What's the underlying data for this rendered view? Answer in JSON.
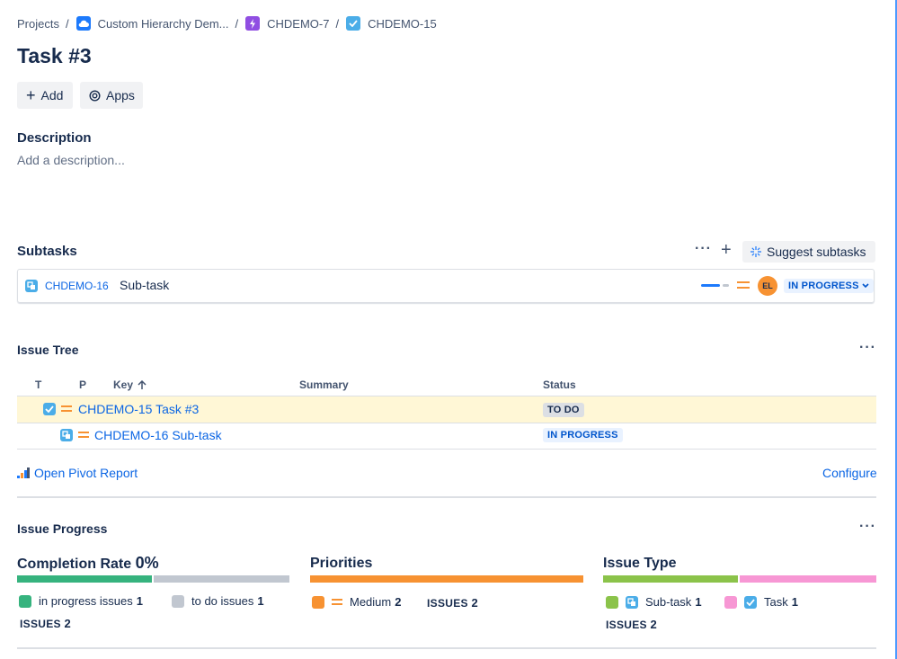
{
  "breadcrumb": {
    "projects": "Projects",
    "project": "Custom Hierarchy Dem...",
    "epic": "CHDEMO-7",
    "task": "CHDEMO-15",
    "separator": "/"
  },
  "issue": {
    "title": "Task #3"
  },
  "actions": {
    "add_label": "Add",
    "apps_label": "Apps"
  },
  "description": {
    "heading": "Description",
    "placeholder": "Add a description..."
  },
  "subtasks": {
    "heading": "Subtasks",
    "suggest_label": "Suggest subtasks",
    "items": [
      {
        "key": "CHDEMO-16",
        "summary": "Sub-task",
        "assignee_initials": "EL",
        "status": "IN PROGRESS"
      }
    ]
  },
  "issue_tree": {
    "heading": "Issue Tree",
    "columns": {
      "t": "T",
      "p": "P",
      "key": "Key",
      "summary": "Summary",
      "status": "Status"
    },
    "rows": [
      {
        "key_summary": "CHDEMO-15 Task #3",
        "status": "TO DO"
      },
      {
        "key_summary": "CHDEMO-16 Sub-task",
        "status": "IN PROGRESS"
      }
    ],
    "pivot_link": "Open Pivot Report",
    "configure_link": "Configure"
  },
  "issue_progress": {
    "heading": "Issue Progress",
    "completion": {
      "title": "Completion Rate",
      "rate": "0%",
      "segments": [
        {
          "label": "in progress issues",
          "count": "1",
          "color": "#36b37e",
          "fraction": 0.5
        },
        {
          "label": "to do issues",
          "count": "1",
          "color": "#c1c7d0",
          "fraction": 0.5
        }
      ],
      "issues_label": "ISSUES",
      "issues_count": "2"
    },
    "priorities": {
      "title": "Priorities",
      "segments": [
        {
          "label": "Medium",
          "count": "2",
          "color": "#f79232",
          "fraction": 1.0
        }
      ],
      "issues_label": "ISSUES",
      "issues_count": "2"
    },
    "issue_type": {
      "title": "Issue Type",
      "segments": [
        {
          "label": "Sub-task",
          "count": "1",
          "color": "#8bc34a",
          "fraction": 0.5
        },
        {
          "label": "Task",
          "count": "1",
          "color": "#f797d4",
          "fraction": 0.5
        }
      ],
      "issues_label": "ISSUES",
      "issues_count": "2"
    }
  },
  "colors": {
    "link": "#0c66e4",
    "status_in_progress_bg": "#e9f2ff",
    "status_todo_bg": "#dcdfe4",
    "selected_row_bg": "#fff7d6",
    "priority_medium": "#f79232",
    "avatar": "#f79232"
  }
}
